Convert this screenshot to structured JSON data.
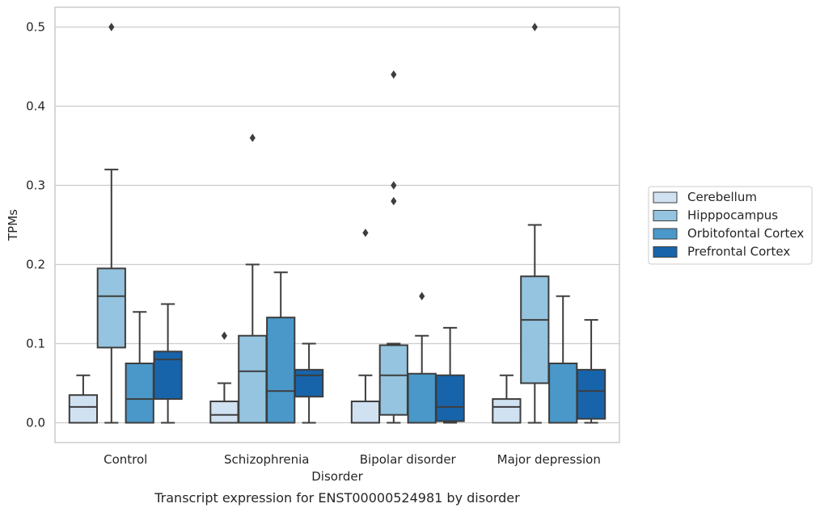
{
  "caption": "Transcript expression for ENST00000524981 by disorder",
  "chart_data": {
    "type": "box",
    "title": "",
    "xlabel": "Disorder",
    "ylabel": "TPMs",
    "ylim": [
      -0.025,
      0.525
    ],
    "yticks": [
      0.0,
      0.1,
      0.2,
      0.3,
      0.4,
      0.5
    ],
    "ytick_labels": [
      "0.0",
      "0.1",
      "0.2",
      "0.3",
      "0.4",
      "0.5"
    ],
    "grid": "horizontal",
    "legend_position": "right",
    "categories": [
      "Control",
      "Schizophrenia",
      "Bipolar disorder",
      "Major depression"
    ],
    "series": [
      {
        "name": "Cerebellum",
        "color": "#d0e1f2",
        "boxes": [
          {
            "whislo": 0.0,
            "q1": 0.0,
            "med": 0.02,
            "q3": 0.035,
            "whishi": 0.06,
            "fliers": []
          },
          {
            "whislo": 0.0,
            "q1": 0.0,
            "med": 0.01,
            "q3": 0.027,
            "whishi": 0.05,
            "fliers": [
              0.11
            ]
          },
          {
            "whislo": 0.0,
            "q1": 0.0,
            "med": 0.0,
            "q3": 0.027,
            "whishi": 0.06,
            "fliers": [
              0.24
            ]
          },
          {
            "whislo": 0.0,
            "q1": 0.0,
            "med": 0.02,
            "q3": 0.03,
            "whishi": 0.06,
            "fliers": []
          }
        ]
      },
      {
        "name": "Hipppocampus",
        "color": "#94c4df",
        "boxes": [
          {
            "whislo": 0.0,
            "q1": 0.095,
            "med": 0.16,
            "q3": 0.195,
            "whishi": 0.32,
            "fliers": [
              0.5
            ]
          },
          {
            "whislo": 0.0,
            "q1": 0.0,
            "med": 0.065,
            "q3": 0.11,
            "whishi": 0.2,
            "fliers": [
              0.36
            ]
          },
          {
            "whislo": 0.0,
            "q1": 0.01,
            "med": 0.06,
            "q3": 0.098,
            "whishi": 0.1,
            "fliers": [
              0.44,
              0.3,
              0.28
            ]
          },
          {
            "whislo": 0.0,
            "q1": 0.05,
            "med": 0.13,
            "q3": 0.185,
            "whishi": 0.25,
            "fliers": [
              0.5
            ]
          }
        ]
      },
      {
        "name": "Orbitofontal Cortex",
        "color": "#4a98c9",
        "boxes": [
          {
            "whislo": 0.0,
            "q1": 0.0,
            "med": 0.03,
            "q3": 0.075,
            "whishi": 0.14,
            "fliers": []
          },
          {
            "whislo": 0.0,
            "q1": 0.0,
            "med": 0.04,
            "q3": 0.133,
            "whishi": 0.19,
            "fliers": []
          },
          {
            "whislo": 0.0,
            "q1": 0.0,
            "med": 0.0,
            "q3": 0.062,
            "whishi": 0.11,
            "fliers": [
              0.16
            ]
          },
          {
            "whislo": 0.0,
            "q1": 0.0,
            "med": 0.0,
            "q3": 0.075,
            "whishi": 0.16,
            "fliers": []
          }
        ]
      },
      {
        "name": "Prefrontal Cortex",
        "color": "#1764ab",
        "boxes": [
          {
            "whislo": 0.0,
            "q1": 0.03,
            "med": 0.08,
            "q3": 0.09,
            "whishi": 0.15,
            "fliers": []
          },
          {
            "whislo": 0.0,
            "q1": 0.033,
            "med": 0.06,
            "q3": 0.067,
            "whishi": 0.1,
            "fliers": []
          },
          {
            "whislo": 0.0,
            "q1": 0.002,
            "med": 0.02,
            "q3": 0.06,
            "whishi": 0.12,
            "fliers": []
          },
          {
            "whislo": 0.0,
            "q1": 0.005,
            "med": 0.04,
            "q3": 0.067,
            "whishi": 0.13,
            "fliers": []
          }
        ]
      }
    ]
  },
  "style": {
    "grid_color": "#cccccc",
    "frame_color": "#cccccc",
    "line_color": "#3d3d3d",
    "text_color": "#262626"
  }
}
